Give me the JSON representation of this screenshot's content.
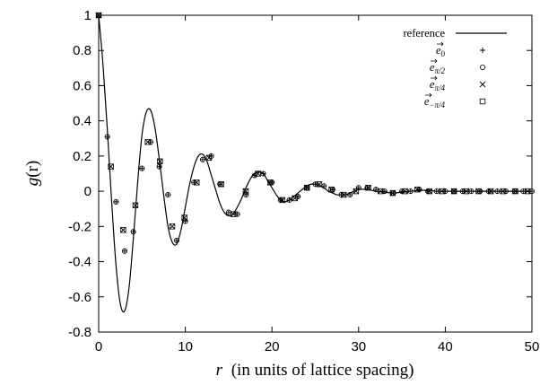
{
  "chart_data": {
    "type": "line",
    "xlabel_var": "r",
    "xlabel_rest": "(in units of lattice spacing)",
    "ylabel_var": "g",
    "ylabel_rest": "(r)",
    "xlim": [
      0,
      50
    ],
    "ylim": [
      -0.8,
      1.0
    ],
    "x_ticks": [
      0,
      10,
      20,
      30,
      40,
      50
    ],
    "x_tick_labels": [
      "0",
      "10",
      "20",
      "30",
      "40",
      "50"
    ],
    "y_ticks": [
      -0.8,
      -0.6,
      -0.4,
      -0.2,
      0,
      0.2,
      0.4,
      0.6,
      0.8,
      1.0
    ],
    "y_tick_labels": [
      "-0.8",
      "-0.6",
      "-0.4",
      "-0.2",
      "0",
      "0.2",
      "0.4",
      "0.6",
      "0.8",
      "1"
    ],
    "grid": false,
    "legend_position": "top-right",
    "series": [
      {
        "name": "reference",
        "legend_main": "reference",
        "legend_sub": "",
        "marker": "line",
        "x": [
          0,
          0.5,
          1,
          1.5,
          2,
          2.5,
          3,
          3.5,
          4,
          4.5,
          5,
          5.5,
          6,
          6.5,
          7,
          7.5,
          8,
          8.5,
          9,
          9.5,
          10,
          10.5,
          11,
          11.5,
          12,
          12.5,
          13,
          13.5,
          14,
          14.5,
          15,
          15.5,
          16,
          16.5,
          17,
          17.5,
          18,
          18.5,
          19,
          19.5,
          20,
          20.5,
          21,
          21.5,
          22,
          22.5,
          23,
          23.5,
          24,
          24.5,
          25,
          25.5,
          26,
          26.5,
          27,
          27.5,
          28,
          28.5,
          29,
          29.5,
          30,
          31,
          32,
          33,
          34,
          35,
          36,
          37,
          38,
          39,
          40,
          41,
          42,
          43,
          44,
          45,
          46,
          47,
          48,
          49,
          50
        ],
        "y": [
          1.0,
          0.72,
          0.35,
          -0.06,
          -0.42,
          -0.64,
          -0.68,
          -0.55,
          -0.27,
          0.05,
          0.32,
          0.45,
          0.46,
          0.36,
          0.18,
          -0.02,
          -0.2,
          -0.29,
          -0.3,
          -0.22,
          -0.09,
          0.04,
          0.14,
          0.2,
          0.21,
          0.17,
          0.09,
          0.01,
          -0.07,
          -0.12,
          -0.14,
          -0.13,
          -0.09,
          -0.04,
          0.02,
          0.07,
          0.1,
          0.11,
          0.1,
          0.06,
          0.02,
          -0.02,
          -0.05,
          -0.06,
          -0.05,
          -0.03,
          -0.01,
          0.01,
          0.03,
          0.04,
          0.04,
          0.03,
          0.02,
          0.0,
          -0.01,
          -0.02,
          -0.02,
          -0.02,
          -0.01,
          0.0,
          0.01,
          0.01,
          0.0,
          -0.005,
          -0.01,
          -0.005,
          0.0,
          0.005,
          0.005,
          0.0,
          0.0,
          0.0,
          0.0,
          0.0,
          0.0,
          0.0,
          0.0,
          0.0,
          0.0,
          0.0,
          0.0
        ]
      },
      {
        "name": "e0",
        "legend_main": "e0",
        "legend_sub": "",
        "marker": "plus",
        "x": [
          0,
          1,
          2,
          3,
          4,
          5,
          6,
          7,
          8,
          9,
          10,
          11,
          12,
          13,
          14,
          15,
          16,
          17,
          18,
          19,
          20,
          21,
          22,
          23,
          24,
          25,
          26,
          27,
          28,
          29,
          30,
          31,
          32,
          33,
          34,
          35,
          36,
          37,
          38,
          39,
          40,
          41,
          42,
          43,
          44,
          45,
          46,
          47,
          48,
          49,
          50
        ],
        "y": [
          1.0,
          0.31,
          -0.06,
          -0.34,
          -0.23,
          0.13,
          0.28,
          0.14,
          -0.02,
          -0.28,
          -0.17,
          0.05,
          0.18,
          0.2,
          0.04,
          -0.12,
          -0.13,
          -0.02,
          0.09,
          0.1,
          0.05,
          -0.05,
          -0.05,
          -0.03,
          0.02,
          0.04,
          0.03,
          0.01,
          -0.02,
          -0.02,
          0.02,
          0.02,
          0.01,
          0.0,
          -0.01,
          0.0,
          0.0,
          0.01,
          0.0,
          0.0,
          0.0,
          0.0,
          0.0,
          0.0,
          0.0,
          0.0,
          0.0,
          0.0,
          0.0,
          0.0,
          0.0
        ]
      },
      {
        "name": "e_pi/2",
        "legend_main": "e",
        "legend_sub": "π/2",
        "marker": "circle",
        "x": [
          0,
          1,
          2,
          3,
          4,
          5,
          6,
          7,
          8,
          9,
          10,
          11,
          12,
          13,
          14,
          15,
          16,
          17,
          18,
          19,
          20,
          21,
          22,
          23,
          24,
          25,
          26,
          27,
          28,
          29,
          30,
          31,
          32,
          33,
          34,
          35,
          36,
          37,
          38,
          39,
          40,
          41,
          42,
          43,
          44,
          45,
          46,
          47,
          48,
          49,
          50
        ],
        "y": [
          1.0,
          0.31,
          -0.06,
          -0.34,
          -0.23,
          0.13,
          0.28,
          0.14,
          -0.02,
          -0.28,
          -0.17,
          0.05,
          0.18,
          0.2,
          0.04,
          -0.12,
          -0.13,
          -0.02,
          0.09,
          0.1,
          0.05,
          -0.05,
          -0.05,
          -0.03,
          0.02,
          0.04,
          0.03,
          0.01,
          -0.02,
          -0.02,
          0.02,
          0.02,
          0.01,
          0.0,
          -0.01,
          0.0,
          0.0,
          0.01,
          0.0,
          0.0,
          0.0,
          0.0,
          0.0,
          0.0,
          0.0,
          0.0,
          0.0,
          0.0,
          0.0,
          0.0,
          0.0
        ]
      },
      {
        "name": "e_pi/4",
        "legend_main": "e",
        "legend_sub": "π/4",
        "marker": "cross",
        "x": [
          0,
          1.41,
          2.83,
          4.24,
          5.66,
          7.07,
          8.49,
          9.9,
          11.31,
          12.73,
          14.14,
          15.56,
          16.97,
          18.38,
          19.8,
          21.21,
          22.63,
          24.04,
          25.46,
          26.87,
          28.28,
          29.7,
          31.11,
          32.53,
          33.94,
          35.36,
          36.77,
          38.18,
          39.6,
          41.01,
          42.43,
          43.84,
          45.25,
          46.67,
          48.08,
          49.5
        ],
        "y": [
          1.0,
          0.14,
          -0.22,
          -0.08,
          0.28,
          0.17,
          -0.2,
          -0.15,
          0.05,
          0.19,
          0.04,
          -0.13,
          0.0,
          0.1,
          0.05,
          -0.05,
          -0.04,
          0.02,
          0.04,
          0.01,
          -0.02,
          0.0,
          0.02,
          0.0,
          -0.01,
          0.0,
          0.01,
          0.0,
          0.0,
          0.0,
          0.0,
          0.0,
          0.0,
          0.0,
          0.0,
          0.0
        ]
      },
      {
        "name": "e_-pi/4",
        "legend_main": "e",
        "legend_sub": "−π/4",
        "marker": "square",
        "x": [
          0,
          1.41,
          2.83,
          4.24,
          5.66,
          7.07,
          8.49,
          9.9,
          11.31,
          12.73,
          14.14,
          15.56,
          16.97,
          18.38,
          19.8,
          21.21,
          22.63,
          24.04,
          25.46,
          26.87,
          28.28,
          29.7,
          31.11,
          32.53,
          33.94,
          35.36,
          36.77,
          38.18,
          39.6,
          41.01,
          42.43,
          43.84,
          45.25,
          46.67,
          48.08,
          49.5
        ],
        "y": [
          1.0,
          0.14,
          -0.22,
          -0.08,
          0.28,
          0.17,
          -0.2,
          -0.15,
          0.05,
          0.19,
          0.04,
          -0.13,
          0.0,
          0.1,
          0.05,
          -0.05,
          -0.04,
          0.02,
          0.04,
          0.01,
          -0.02,
          0.0,
          0.02,
          0.0,
          -0.01,
          0.0,
          0.01,
          0.0,
          0.0,
          0.0,
          0.0,
          0.0,
          0.0,
          0.0,
          0.0,
          0.0
        ]
      }
    ]
  }
}
